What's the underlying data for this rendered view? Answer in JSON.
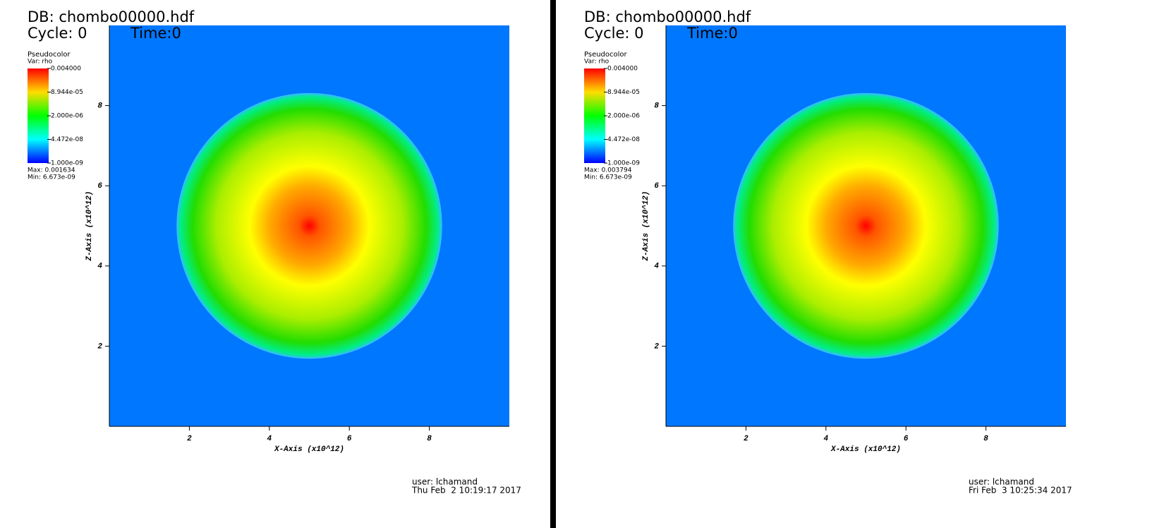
{
  "chart_data": [
    {
      "type": "pseudocolor",
      "title": "DB: chombo00000.hdf",
      "cycle": "Cycle: 0",
      "time": "Time:0",
      "background": "#0077ff",
      "xlabel": "X-Axis (x10^12)",
      "ylabel": "Z-Axis (x10^12)",
      "xlim": [
        0,
        10
      ],
      "ylim": [
        0,
        10
      ],
      "xticks": [
        2,
        4,
        6,
        8
      ],
      "yticks": [
        2,
        4,
        6,
        8
      ],
      "legend": {
        "title": "Pseudocolor",
        "var": "Var: rho",
        "log": true,
        "lim": [
          1e-09,
          0.004
        ],
        "ticks": [
          {
            "value": 0.004,
            "label": "0.004000"
          },
          {
            "value": 8.944e-05,
            "label": "8.944e-05"
          },
          {
            "value": 2e-06,
            "label": "2.000e-06"
          },
          {
            "value": 4.472e-08,
            "label": "4.472e-08"
          },
          {
            "value": 1e-09,
            "label": "1.000e-09"
          }
        ],
        "max": "Max: 0.001634",
        "min": "Min: 6.673e-09"
      },
      "user": "user: lchamand",
      "date": "Thu Feb  2 10:19:17 2017"
    },
    {
      "type": "pseudocolor",
      "title": "DB: chombo00000.hdf",
      "cycle": "Cycle: 0",
      "time": "Time:0",
      "background": "#0077ff",
      "xlabel": "X-Axis (x10^12)",
      "ylabel": "Z-Axis (x10^12)",
      "xlim": [
        0,
        10
      ],
      "ylim": [
        0,
        10
      ],
      "xticks": [
        2,
        4,
        6,
        8
      ],
      "yticks": [
        2,
        4,
        6,
        8
      ],
      "legend": {
        "title": "Pseudocolor",
        "var": "Var: rho",
        "log": true,
        "lim": [
          1e-09,
          0.004
        ],
        "ticks": [
          {
            "value": 0.004,
            "label": "0.004000"
          },
          {
            "value": 8.944e-05,
            "label": "8.944e-05"
          },
          {
            "value": 2e-06,
            "label": "2.000e-06"
          },
          {
            "value": 4.472e-08,
            "label": "4.472e-08"
          },
          {
            "value": 1e-09,
            "label": "1.000e-09"
          }
        ],
        "max": "Max: 0.003794",
        "min": "Min: 6.673e-09"
      },
      "user": "user: lchamand",
      "date": "Fri Feb  3 10:25:34 2017"
    }
  ]
}
